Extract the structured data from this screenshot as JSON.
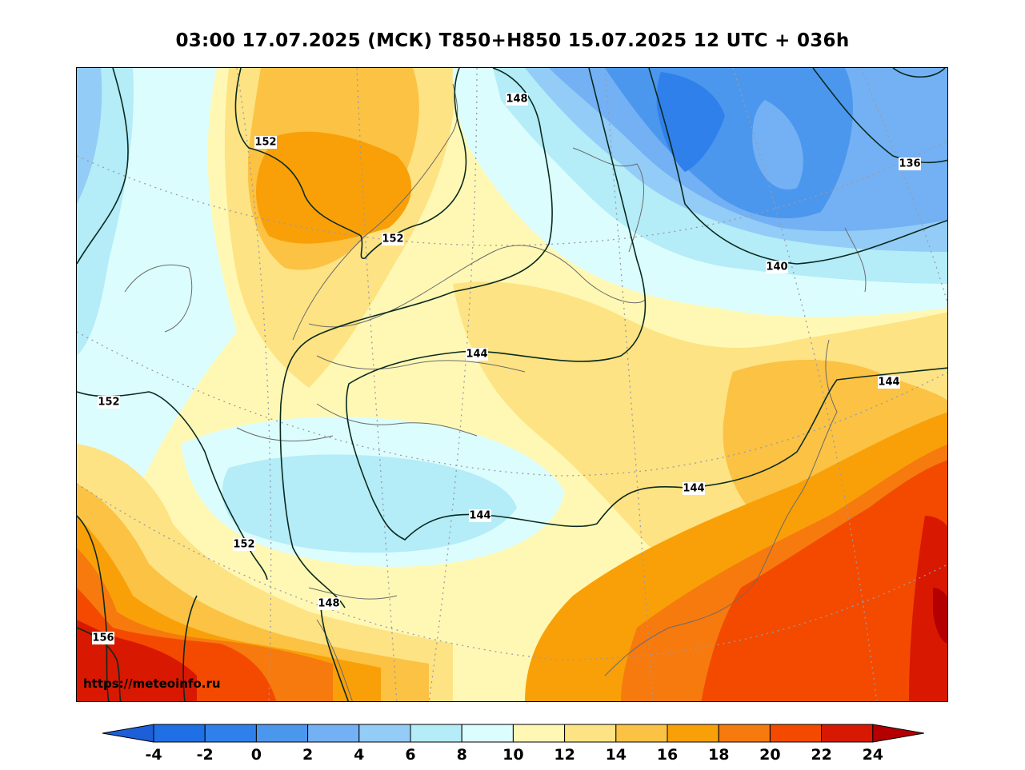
{
  "title": "03:00 17.07.2025 (МСК) T850+H850 15.07.2025 12 UTC + 036h",
  "watermark": "https://meteoinfo.ru",
  "colors": {
    "m4": "#1f6fe6",
    "m2": "#2f80ea",
    "c0": "#4c97ee",
    "c2": "#73b1f4",
    "c4": "#93ccf6",
    "c6": "#b4ecf8",
    "c8": "#dcfdfd",
    "c10": "#fff8b4",
    "c12": "#fde383",
    "c14": "#fbc244",
    "c16": "#f9a008",
    "c18": "#f67a0e",
    "c20": "#f34a00",
    "c22": "#d81800",
    "c24": "#b40000",
    "contour": "#0a2a1f",
    "coast": "#6b6b6b"
  },
  "colorbar": {
    "ticks": [
      "-4",
      "-2",
      "0",
      "2",
      "4",
      "6",
      "8",
      "10",
      "12",
      "14",
      "16",
      "18",
      "20",
      "22",
      "24"
    ]
  },
  "contour_labels": {
    "l152a": "152",
    "l148a": "148",
    "l136": "136",
    "l152b": "152",
    "l140": "140",
    "l144a": "144",
    "l152c": "152",
    "l144b": "144",
    "l144c": "144",
    "l144d": "144",
    "l152d": "152",
    "l148b": "148",
    "l156": "156"
  }
}
